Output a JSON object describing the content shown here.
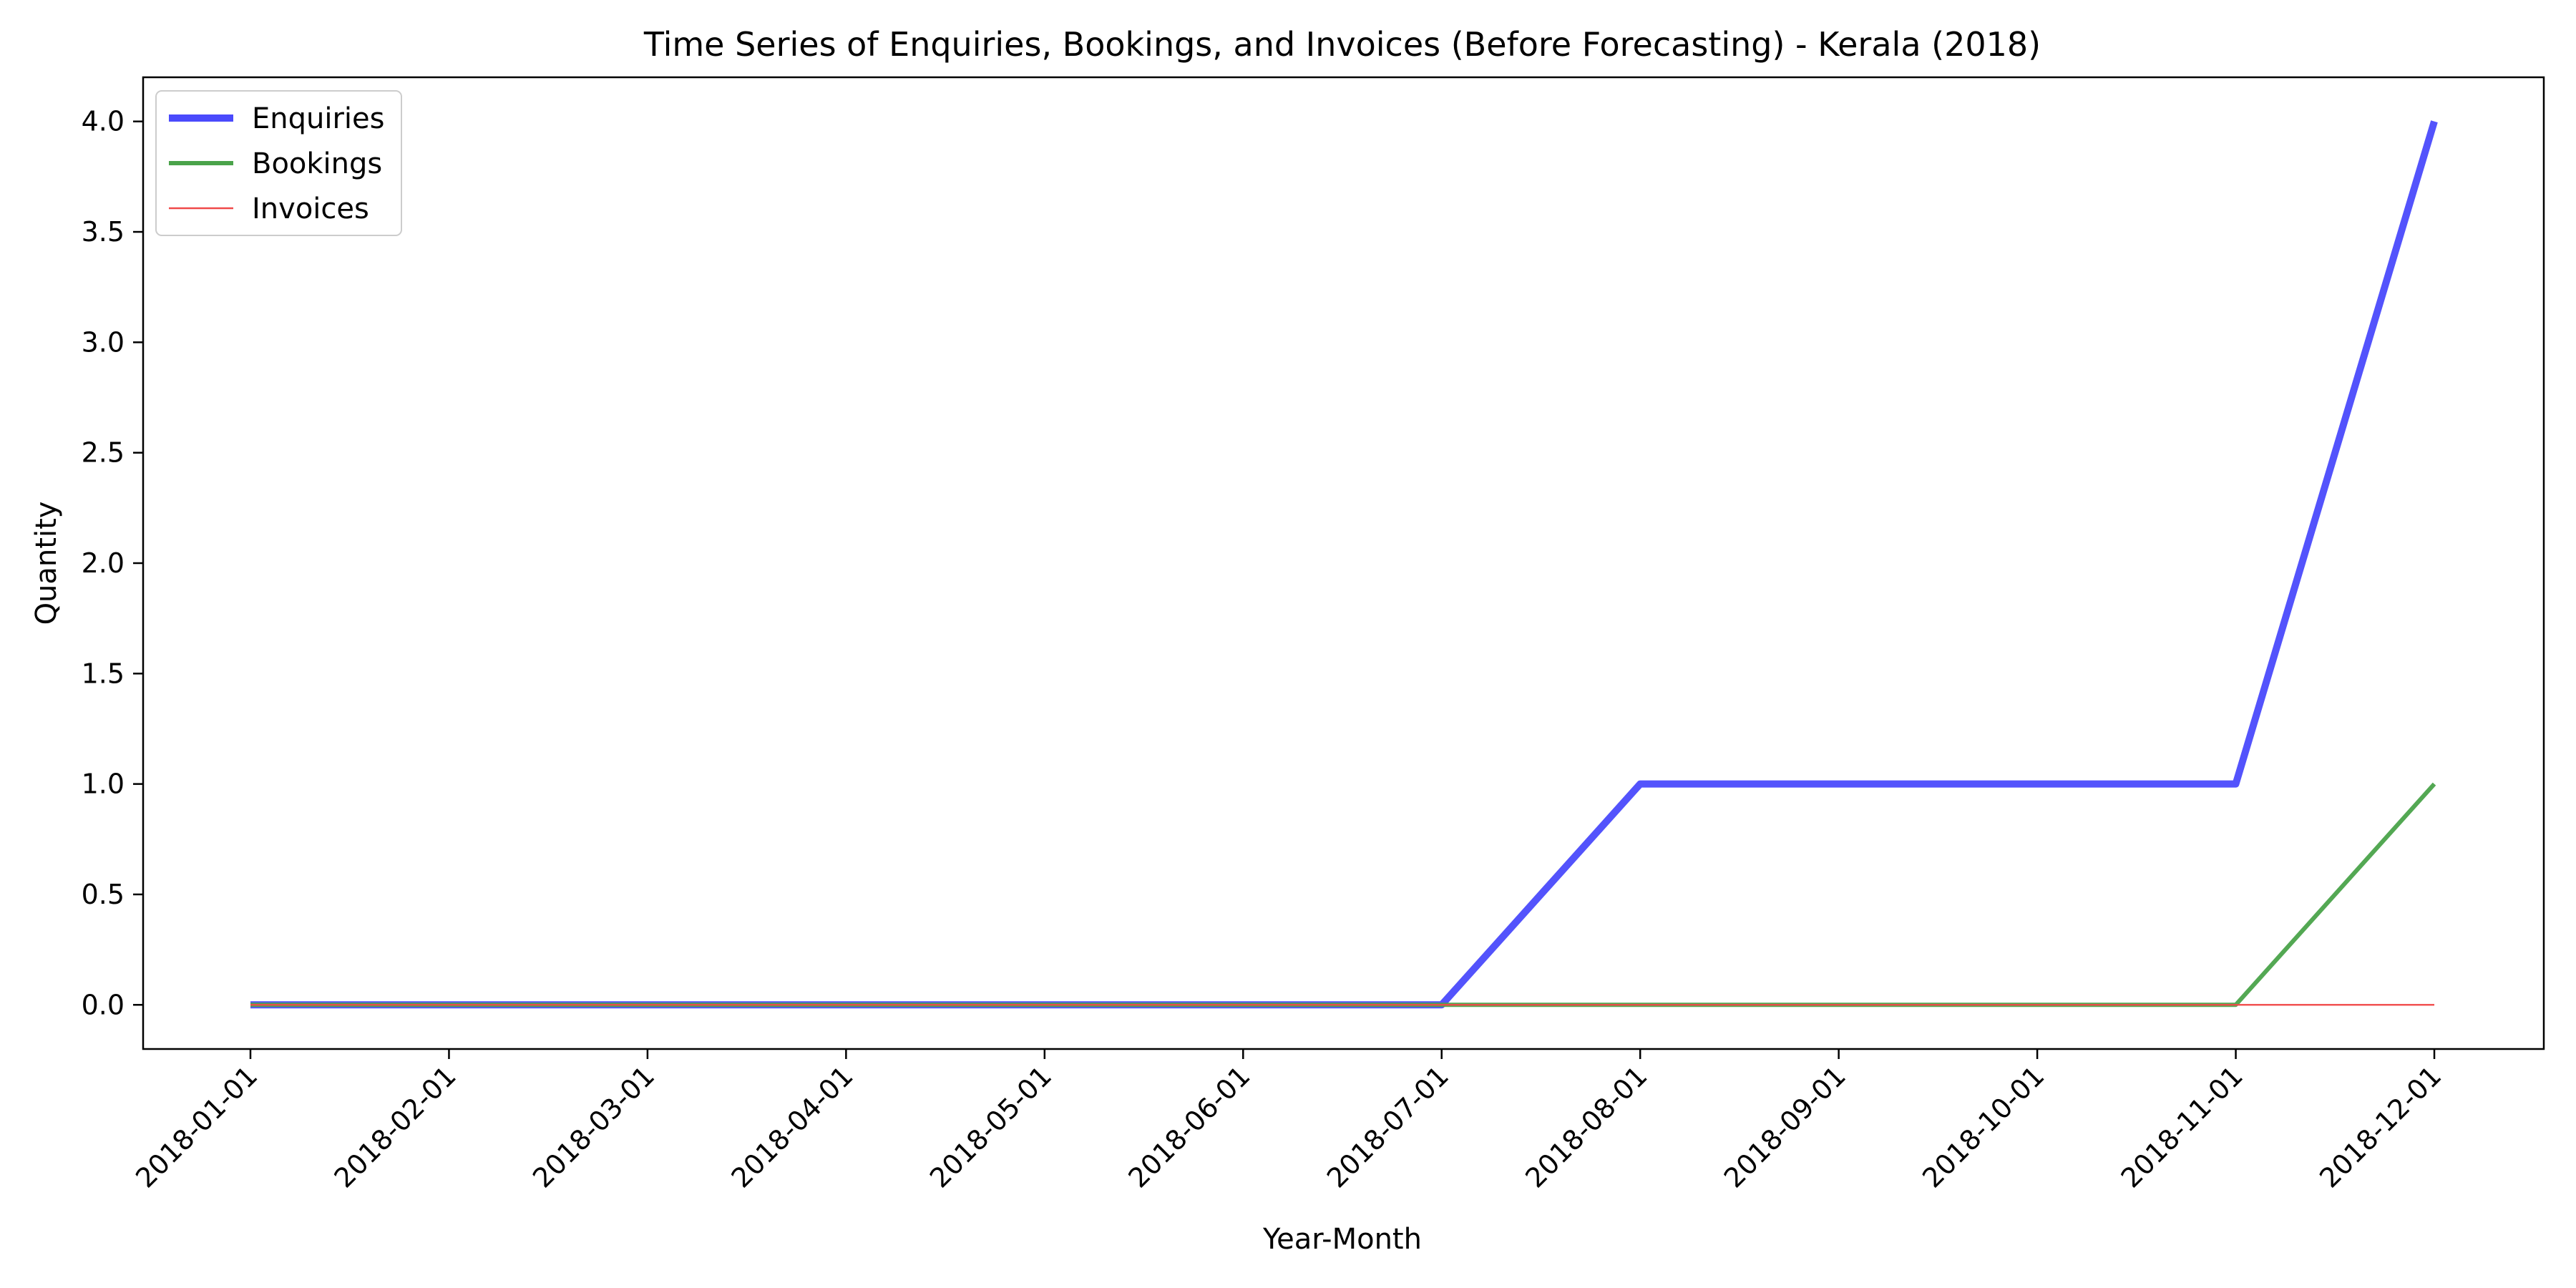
{
  "chart_data": {
    "type": "line",
    "title": "Time Series of Enquiries, Bookings, and Invoices (Before Forecasting) - Kerala (2018)",
    "xlabel": "Year-Month",
    "ylabel": "Quantity",
    "x": [
      "2018-01-01",
      "2018-02-01",
      "2018-03-01",
      "2018-04-01",
      "2018-05-01",
      "2018-06-01",
      "2018-07-01",
      "2018-08-01",
      "2018-09-01",
      "2018-10-01",
      "2018-11-01",
      "2018-12-01"
    ],
    "yticks": [
      "0.0",
      "0.5",
      "1.0",
      "1.5",
      "2.0",
      "2.5",
      "3.0",
      "3.5",
      "4.0"
    ],
    "ylim": [
      -0.2,
      4.2
    ],
    "grid": false,
    "legend_position": "upper-left",
    "series": [
      {
        "name": "Enquiries",
        "color": "#4a4afc",
        "values": [
          0,
          0,
          0,
          0,
          0,
          0,
          0,
          1,
          1,
          1,
          1,
          4
        ]
      },
      {
        "name": "Bookings",
        "color": "#4aa34a",
        "values": [
          0,
          0,
          0,
          0,
          0,
          0,
          0,
          0,
          0,
          0,
          0,
          1
        ]
      },
      {
        "name": "Invoices",
        "color": "#f04a4a",
        "values": [
          0,
          0,
          0,
          0,
          0,
          0,
          0,
          0,
          0,
          0,
          0,
          0
        ]
      }
    ]
  }
}
